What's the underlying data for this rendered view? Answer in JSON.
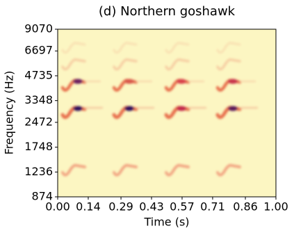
{
  "chart_data": {
    "type": "spectrogram",
    "title": "(d) Northern goshawk",
    "x_label": "Time (s)",
    "y_label": "Frequency (Hz)",
    "xlim": [
      0,
      1
    ],
    "xticks": [
      {
        "value": 0,
        "label": "0.00"
      },
      0.14,
      0.29,
      0.43,
      0.57,
      0.71,
      0.86,
      {
        "value": 1,
        "label": "1.00"
      }
    ],
    "ylim": [
      874,
      9070
    ],
    "yscale": "log",
    "yticks": [
      874,
      1236,
      1748,
      2472,
      3348,
      4735,
      6697,
      9070
    ],
    "background": "#fcf6c2"
  }
}
